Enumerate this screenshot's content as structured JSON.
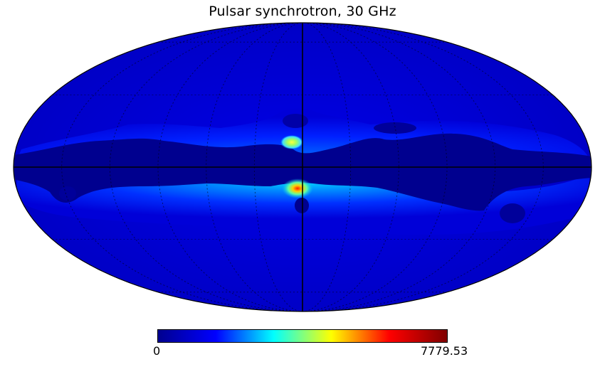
{
  "map": {
    "title": "Pulsar synchrotron, 30 GHz",
    "projection": "mollweide",
    "colormap": "jet",
    "graticule": true
  },
  "colorbar": {
    "min_label": "0",
    "max_label": "7779.53",
    "min_value": 0,
    "max_value": 7779.53,
    "stops": [
      "#00008f",
      "#0000ff",
      "#00ffff",
      "#ffff00",
      "#ff0000",
      "#800000"
    ]
  },
  "colors": {
    "background": "#00008f",
    "low_field": "#0000d6",
    "mid_emission": "#0050ff",
    "bright_emission": "#00c8ff",
    "peak_emission": "#ffff00",
    "core": "#ff3000"
  }
}
